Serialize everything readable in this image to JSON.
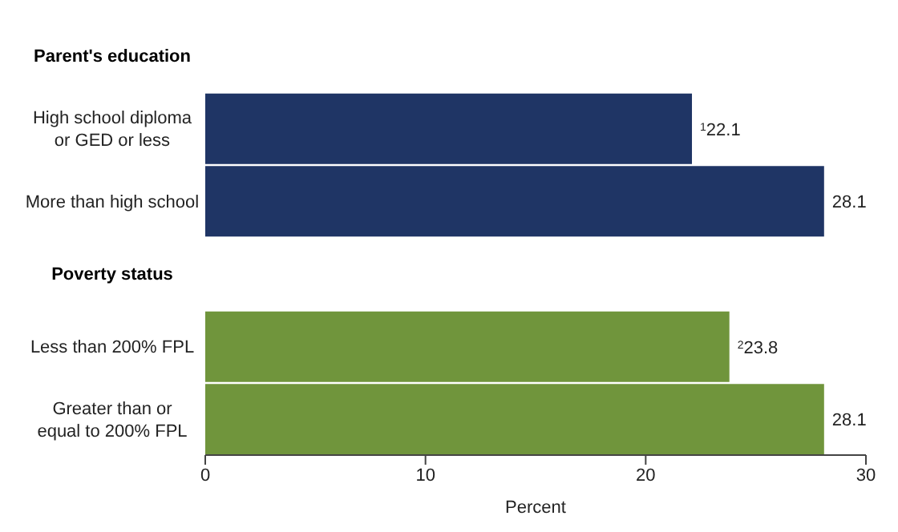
{
  "chart_data": {
    "type": "bar",
    "orientation": "horizontal",
    "xlabel": "Percent",
    "categories": [
      "Parent's education",
      "High school diploma or GED or less",
      "More than high school",
      "Poverty status",
      "Less than 200% FPL",
      "Greater than or equal to 200% FPL"
    ],
    "values": [
      null,
      22.1,
      28.1,
      null,
      23.8,
      28.1
    ],
    "colors": [
      "#1f3565",
      "#1f3565",
      "#1f3565",
      "#70953c",
      "#70953c",
      "#70953c"
    ],
    "value_labels": [
      null,
      "$^{1}$22.1",
      "28.1",
      null,
      "$^{2}$23.8",
      "28.1"
    ],
    "xlim": [
      0,
      30
    ],
    "xticks": [
      0,
      10,
      20,
      30
    ],
    "grid": false,
    "legend": false
  }
}
